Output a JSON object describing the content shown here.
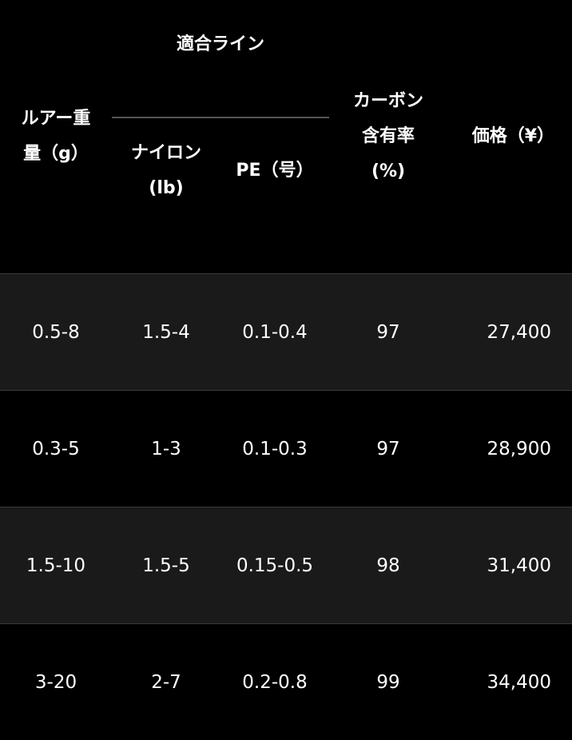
{
  "table": {
    "headers": {
      "lure_weight": [
        "ルアー重",
        "量（g）"
      ],
      "line_group": "適合ライン",
      "nylon": [
        "ナイロン",
        "(lb)"
      ],
      "pe": "PE（号）",
      "carbon": [
        "カーボン",
        "含有率",
        "(%)"
      ],
      "price": "価格（¥）"
    },
    "rows": [
      [
        "0.5-8",
        "1.5-4",
        "0.1-0.4",
        "97",
        "27,400"
      ],
      [
        "0.3-5",
        "1-3",
        "0.1-0.3",
        "97",
        "28,900"
      ],
      [
        "1.5-10",
        "1.5-5",
        "0.15-0.5",
        "98",
        "31,400"
      ],
      [
        "3-20",
        "2-7",
        "0.2-0.8",
        "99",
        "34,400"
      ]
    ],
    "row_colors": [
      "#1a1a1a",
      "#000000"
    ]
  }
}
